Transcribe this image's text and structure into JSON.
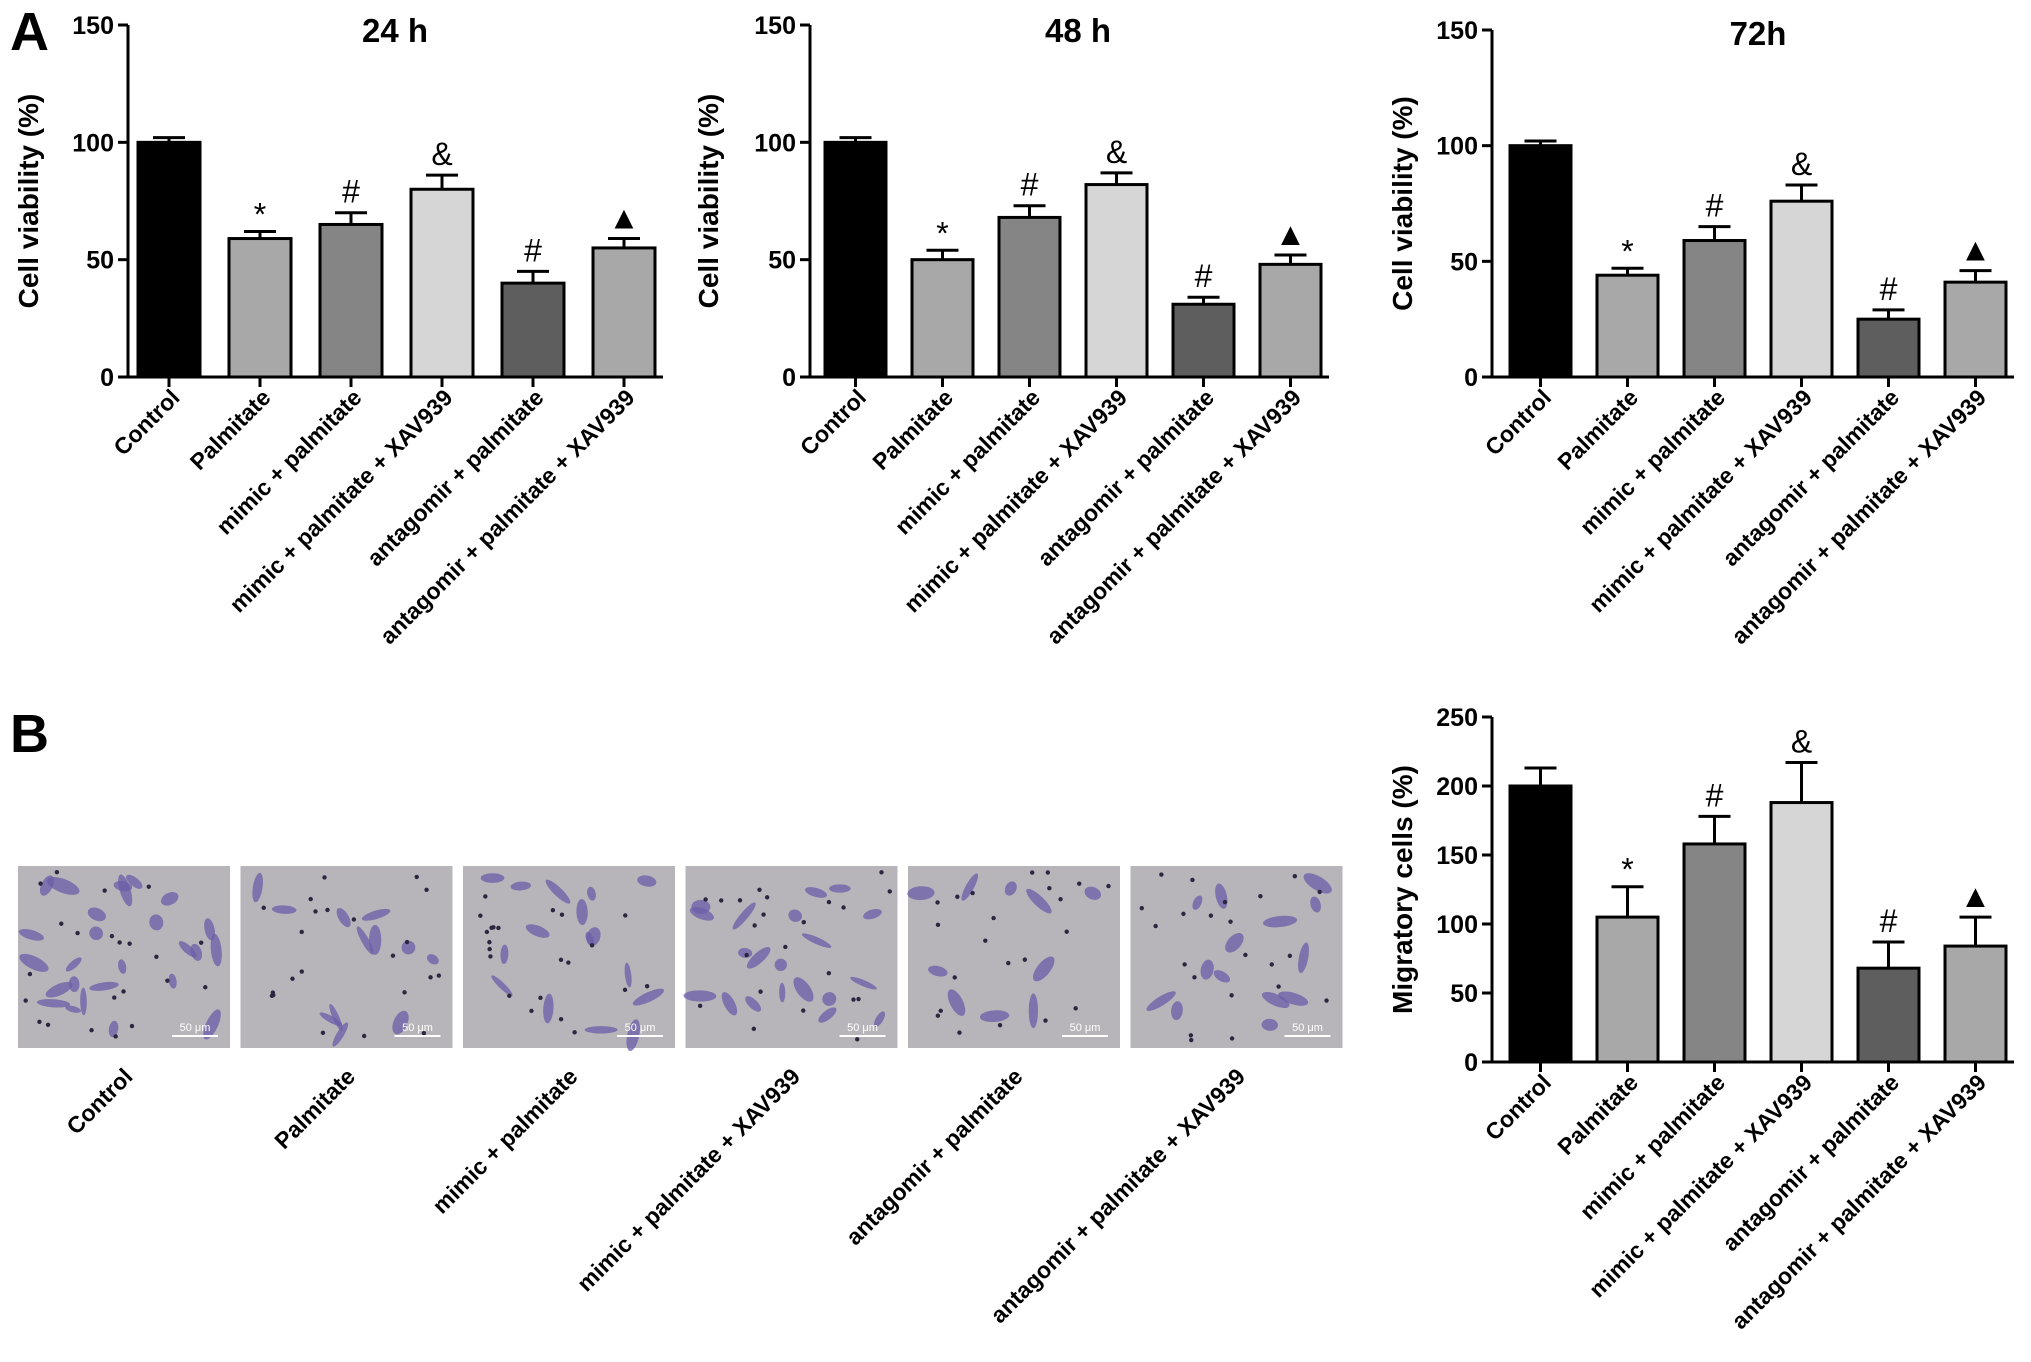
{
  "panel_letters": [
    "A",
    "B"
  ],
  "colors": {
    "bar_fills": [
      "#000000",
      "#a8a8a8",
      "#858585",
      "#d6d6d6",
      "#5e5e5e",
      "#a8a8a8"
    ],
    "micrograph_bg": "#b7b5b9",
    "cell_stain": "#6b5ea8"
  },
  "chart_data": [
    {
      "type": "bar",
      "title": "24 h",
      "xlabel": "",
      "ylabel": "Cell viability (%)",
      "ylim": [
        0,
        150
      ],
      "yticks": [
        0,
        50,
        100,
        150
      ],
      "categories": [
        "Control",
        "Palmitate",
        "mimic + palmitate",
        "mimic + palmitate + XAV939",
        "antagomir + palmitate",
        "antagomir + palmitate + XAV939"
      ],
      "values": [
        100,
        59,
        65,
        80,
        40,
        55
      ],
      "errors": [
        2,
        3,
        5,
        6,
        5,
        4
      ],
      "annotations": [
        "",
        "*",
        "#",
        "&",
        "#",
        "▲"
      ],
      "grid": false,
      "error_bars": true
    },
    {
      "type": "bar",
      "title": "48 h",
      "xlabel": "",
      "ylabel": "Cell viability (%)",
      "ylim": [
        0,
        150
      ],
      "yticks": [
        0,
        50,
        100,
        150
      ],
      "categories": [
        "Control",
        "Palmitate",
        "mimic + palmitate",
        "mimic + palmitate + XAV939",
        "antagomir + palmitate",
        "antagomir + palmitate + XAV939"
      ],
      "values": [
        100,
        50,
        68,
        82,
        31,
        48
      ],
      "errors": [
        2,
        4,
        5,
        5,
        3,
        4
      ],
      "annotations": [
        "",
        "*",
        "#",
        "&",
        "#",
        "▲"
      ],
      "grid": false,
      "error_bars": true
    },
    {
      "type": "bar",
      "title": "72h",
      "xlabel": "",
      "ylabel": "Cell viability (%)",
      "ylim": [
        0,
        150
      ],
      "yticks": [
        0,
        50,
        100,
        150
      ],
      "categories": [
        "Control",
        "Palmitate",
        "mimic + palmitate",
        "mimic + palmitate + XAV939",
        "antagomir + palmitate",
        "antagomir + palmitate + XAV939"
      ],
      "values": [
        100,
        44,
        59,
        76,
        25,
        41
      ],
      "errors": [
        2,
        3,
        6,
        7,
        4,
        5
      ],
      "annotations": [
        "",
        "*",
        "#",
        "&",
        "#",
        "▲"
      ],
      "grid": false,
      "error_bars": true
    },
    {
      "type": "bar",
      "title": "",
      "xlabel": "",
      "ylabel": "Migratory cells  (%)",
      "ylim": [
        0,
        250
      ],
      "yticks": [
        0,
        50,
        100,
        150,
        200,
        250
      ],
      "categories": [
        "Control",
        "Palmitate",
        "mimic + palmitate",
        "mimic + palmitate + XAV939",
        "antagomir + palmitate",
        "antagomir + palmitate + XAV939"
      ],
      "values": [
        200,
        105,
        158,
        188,
        68,
        84
      ],
      "errors": [
        13,
        22,
        20,
        29,
        19,
        21
      ],
      "annotations": [
        "",
        "*",
        "#",
        "&",
        "#",
        "▲"
      ],
      "grid": false,
      "error_bars": true
    }
  ],
  "micrographs": [
    {
      "label": "Control",
      "scale": "50 μm",
      "cells": 26
    },
    {
      "label": "Palmitate",
      "scale": "50 μm",
      "cells": 12
    },
    {
      "label": "mimic + palmitate",
      "scale": "50 μm",
      "cells": 16
    },
    {
      "label": "mimic + palmitate + XAV939",
      "scale": "50 μm",
      "cells": 20
    },
    {
      "label": "antagomir + palmitate",
      "scale": "50 μm",
      "cells": 10
    },
    {
      "label": "antagomir + palmitate + XAV939",
      "scale": "50 μm",
      "cells": 14
    }
  ]
}
